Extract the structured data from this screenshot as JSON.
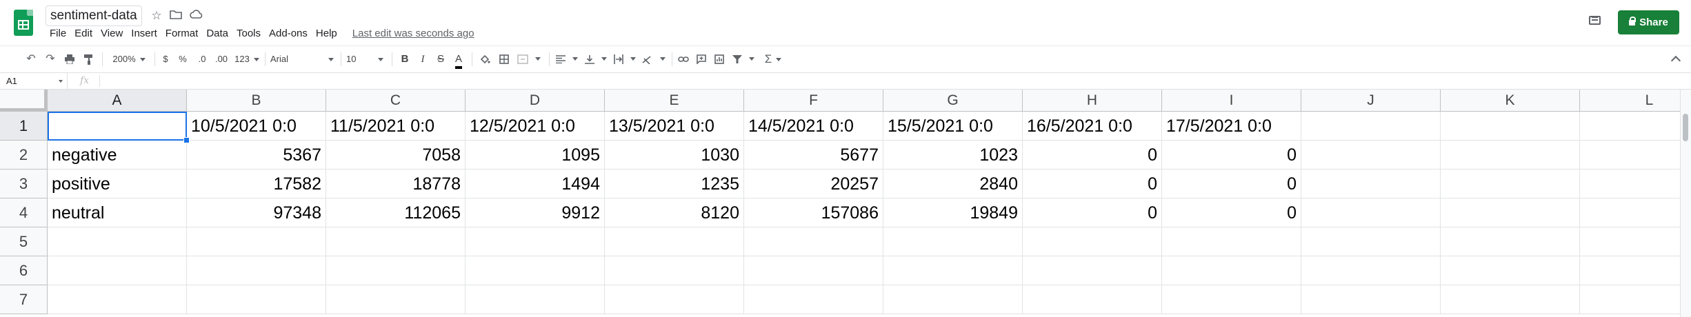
{
  "doc": {
    "title": "sentiment-data",
    "last_edit": "Last edit was seconds ago"
  },
  "menu": [
    "File",
    "Edit",
    "View",
    "Insert",
    "Format",
    "Data",
    "Tools",
    "Add-ons",
    "Help"
  ],
  "share_label": "Share",
  "toolbar": {
    "zoom": "200%",
    "currency": "$",
    "percent": "%",
    "decrease_decimals": ".0",
    "increase_decimals": ".00",
    "more_formats": "123",
    "font": "Arial",
    "font_size": "10",
    "bold": "B",
    "italic": "I",
    "strikethrough": "S",
    "text_color": "A",
    "sum": "Σ"
  },
  "formula_bar": {
    "cell_ref": "A1",
    "fx": "fx"
  },
  "sheet": {
    "columns": [
      "A",
      "B",
      "C",
      "D",
      "E",
      "F",
      "G",
      "H",
      "I",
      "J",
      "K",
      "L"
    ],
    "row_numbers": [
      "1",
      "2",
      "3",
      "4",
      "5",
      "6",
      "7"
    ],
    "header_row": [
      "",
      "10/5/2021 0:0",
      "11/5/2021 0:0",
      "12/5/2021 0:0",
      "13/5/2021 0:0",
      "14/5/2021 0:0",
      "15/5/2021 0:0",
      "16/5/2021 0:0",
      "17/5/2021 0:0"
    ],
    "rows": [
      {
        "label": "negative",
        "values": [
          "5367",
          "7058",
          "1095",
          "1030",
          "5677",
          "1023",
          "0",
          "0"
        ]
      },
      {
        "label": "positive",
        "values": [
          "17582",
          "18778",
          "1494",
          "1235",
          "20257",
          "2840",
          "0",
          "0"
        ]
      },
      {
        "label": "neutral",
        "values": [
          "97348",
          "112065",
          "9912",
          "8120",
          "157086",
          "19849",
          "0",
          "0"
        ]
      }
    ]
  }
}
